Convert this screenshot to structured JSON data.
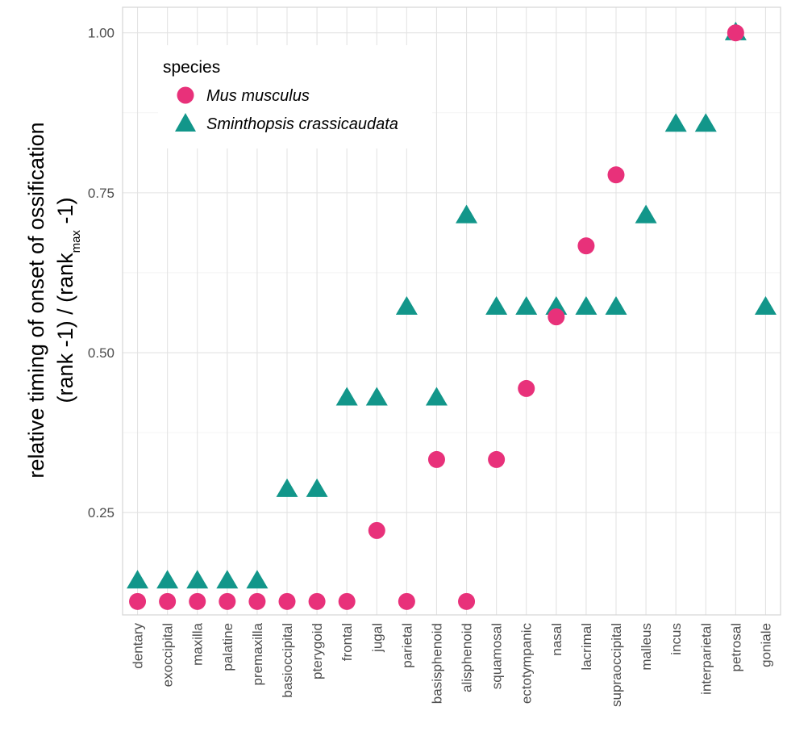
{
  "chart_data": {
    "type": "scatter",
    "title": "",
    "xlabel": "",
    "ylabel": {
      "line1": "relative timing of onset of ossification",
      "line2_prefix": "(rank -1) / (rank",
      "line2_subscript": "max",
      "line2_suffix": " -1)"
    },
    "categories": [
      "dentary",
      "exoccipital",
      "maxilla",
      "palatine",
      "premaxilla",
      "basioccipital",
      "pterygoid",
      "frontal",
      "jugal",
      "parietal",
      "basisphenoid",
      "alisphenoid",
      "squamosal",
      "ectotympanic",
      "nasal",
      "lacrimal",
      "supraoccipital",
      "malleus",
      "incus",
      "interparietal",
      "petrosal",
      "goniale"
    ],
    "ylim": [
      0.09,
      1.04
    ],
    "yticks": [
      0.25,
      0.5,
      0.75,
      1.0
    ],
    "ytick_labels": [
      "0.25",
      "0.50",
      "0.75",
      "1.00"
    ],
    "grid": true,
    "legend": {
      "title": "species",
      "placement": "top-left"
    },
    "series": [
      {
        "name": "Mus musculus",
        "marker": "circle",
        "color": "#e8317a",
        "values": [
          0.111,
          0.111,
          0.111,
          0.111,
          0.111,
          0.111,
          0.111,
          0.111,
          0.222,
          0.111,
          0.333,
          0.111,
          0.333,
          0.444,
          0.556,
          0.667,
          0.778,
          null,
          null,
          null,
          1.0,
          null
        ]
      },
      {
        "name": "Sminthopsis crassicaudata",
        "marker": "triangle",
        "color": "#12968a",
        "values": [
          0.143,
          0.143,
          0.143,
          0.143,
          0.143,
          0.286,
          0.286,
          0.429,
          0.429,
          0.571,
          0.429,
          0.714,
          0.571,
          0.571,
          0.571,
          0.571,
          0.571,
          0.714,
          0.857,
          0.857,
          1.0,
          0.571
        ]
      }
    ]
  }
}
